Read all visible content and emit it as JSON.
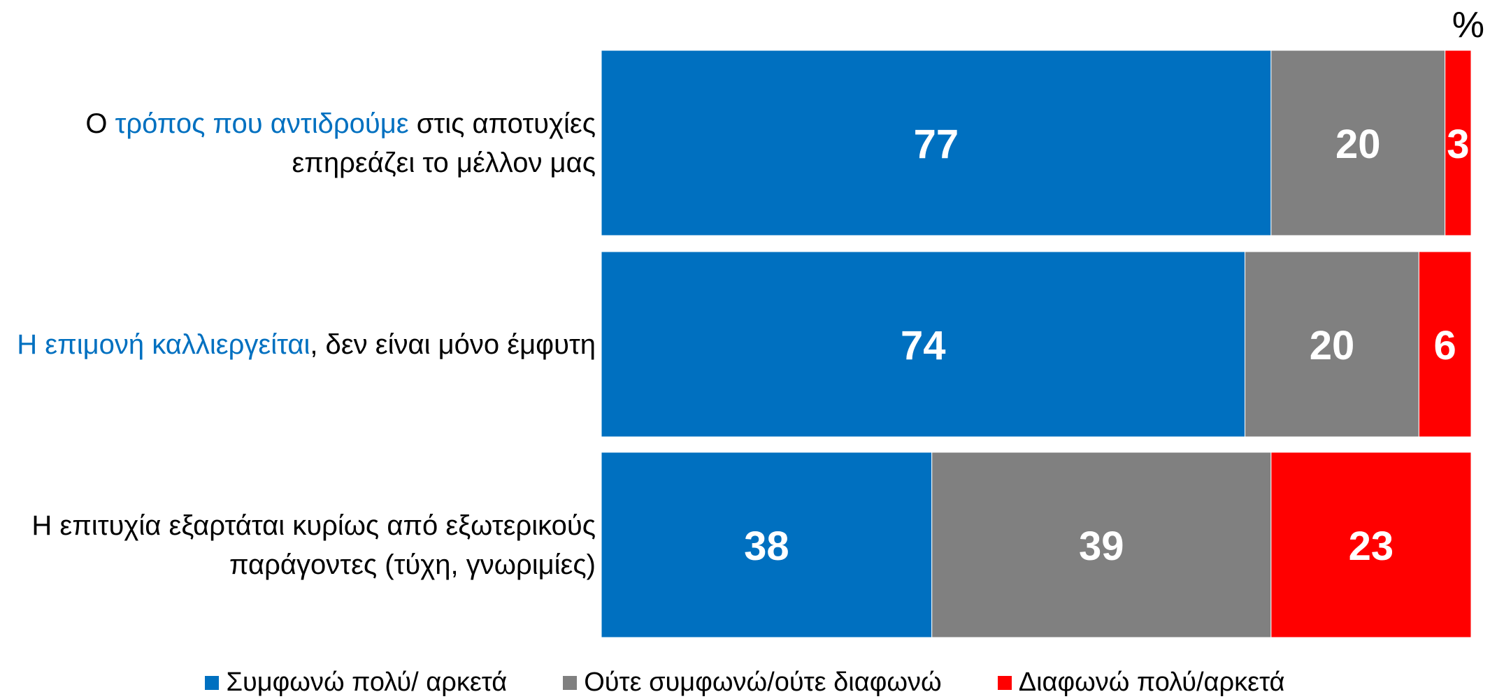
{
  "chart_data": {
    "type": "stacked_bar_horizontal",
    "unit_label": "%",
    "categories": [
      [
        "Ο ",
        "τρόπος που αντιδρούμε",
        " στις αποτυχίες επηρεάζει το μέλλον μας"
      ],
      [
        "Η επιμονή καλλιεργείται",
        ", δεν είναι μόνο έμφυτη"
      ],
      [
        "Η επιτυχία εξαρτάται κυρίως από εξωτερικούς παράγοντες (τύχη, γνωριμίες)"
      ]
    ],
    "highlight_part": [
      1,
      0,
      null
    ],
    "highlight_color": "#0070c0",
    "xlim": [
      0,
      100
    ],
    "series": [
      {
        "name": "Συμφωνώ πολύ/ αρκετά",
        "color": "#0070c0",
        "values": [
          77,
          74,
          38
        ]
      },
      {
        "name": "Ούτε συμφωνώ/ούτε διαφωνώ",
        "color": "#808080",
        "values": [
          20,
          20,
          39
        ]
      },
      {
        "name": "Διαφωνώ πολύ/αρκετά",
        "color": "#ff0000",
        "values": [
          3,
          6,
          23
        ]
      }
    ]
  }
}
